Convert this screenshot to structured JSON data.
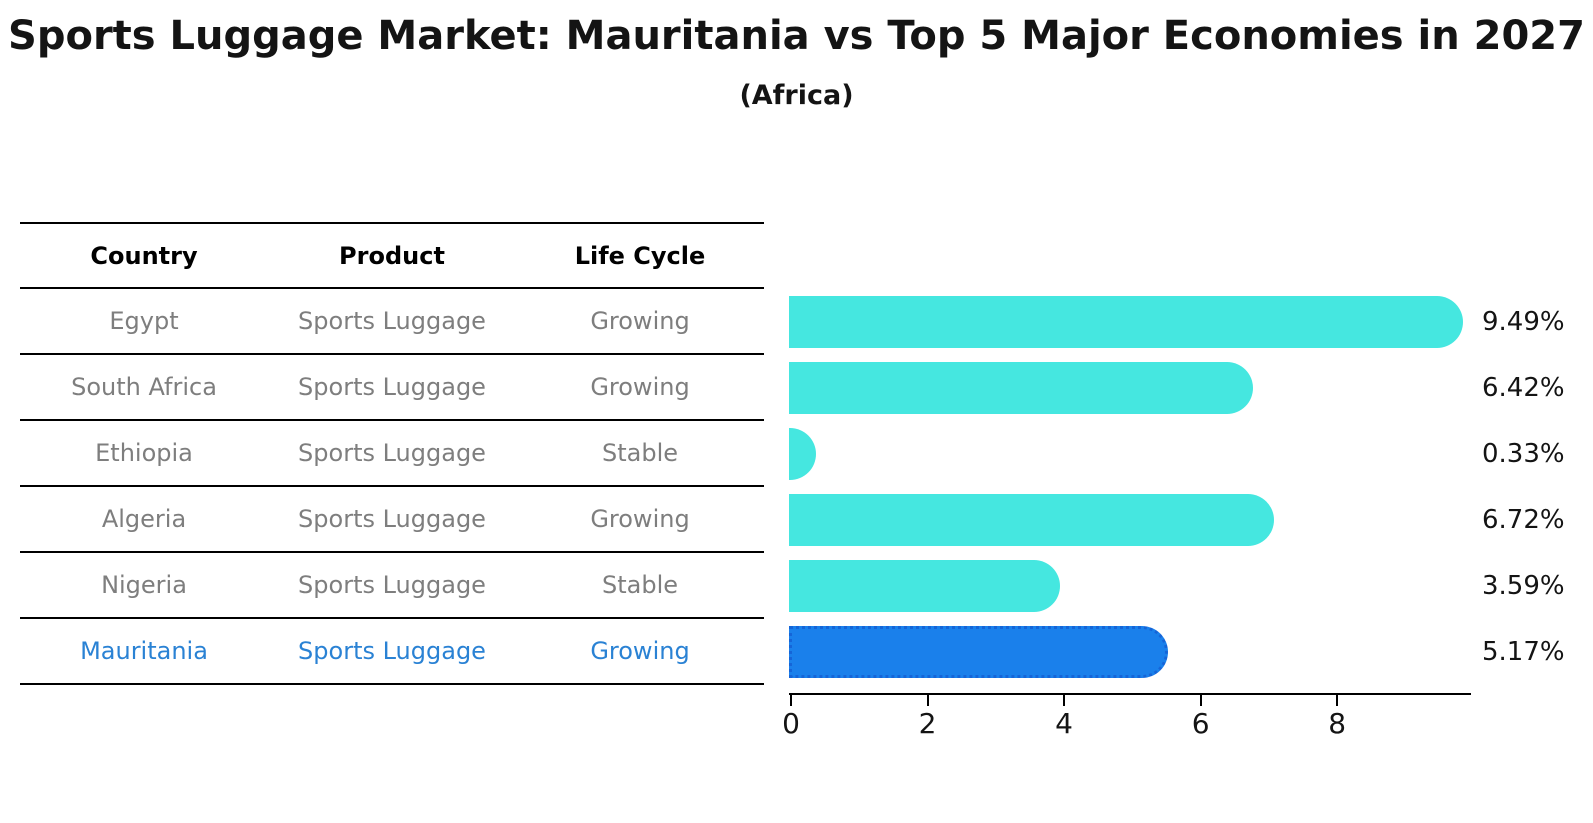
{
  "title": "Sports Luggage Market: Mauritania vs Top 5 Major Economies in 2027",
  "subtitle": "(Africa)",
  "table": {
    "headers": [
      "Country",
      "Product",
      "Life Cycle"
    ],
    "rows": [
      {
        "country": "Egypt",
        "product": "Sports Luggage",
        "life_cycle": "Growing",
        "highlight": false
      },
      {
        "country": "South Africa",
        "product": "Sports Luggage",
        "life_cycle": "Growing",
        "highlight": false
      },
      {
        "country": "Ethiopia",
        "product": "Sports Luggage",
        "life_cycle": "Stable",
        "highlight": false
      },
      {
        "country": "Algeria",
        "product": "Sports Luggage",
        "life_cycle": "Growing",
        "highlight": false
      },
      {
        "country": "Nigeria",
        "product": "Sports Luggage",
        "life_cycle": "Stable",
        "highlight": false
      },
      {
        "country": "Mauritania",
        "product": "Sports Luggage",
        "life_cycle": "Growing",
        "highlight": true
      }
    ]
  },
  "chart_data": {
    "type": "bar",
    "orientation": "horizontal",
    "title": "Sports Luggage Market: Mauritania vs Top 5 Major Economies in 2027",
    "subtitle": "(Africa)",
    "categories": [
      "Egypt",
      "South Africa",
      "Ethiopia",
      "Algeria",
      "Nigeria",
      "Mauritania"
    ],
    "values": [
      9.49,
      6.42,
      0.33,
      6.72,
      3.59,
      5.17
    ],
    "value_labels": [
      "9.49%",
      "6.42%",
      "0.33%",
      "6.72%",
      "3.59%",
      "5.17%"
    ],
    "highlight_index": 5,
    "xlabel": "",
    "ylabel": "",
    "xlim": [
      0,
      9.96
    ],
    "xticks": [
      0,
      2,
      4,
      6,
      8
    ],
    "grid": false,
    "legend": false
  },
  "colors": {
    "bar_color": "#45e7e0",
    "highlight_bar_color": "#1a80eb",
    "highlight_bar_border": "#1565d8",
    "highlight_text_color": "#2a82d4",
    "table_text_gray": "#7e7e7e",
    "axis_black": "#000000"
  }
}
